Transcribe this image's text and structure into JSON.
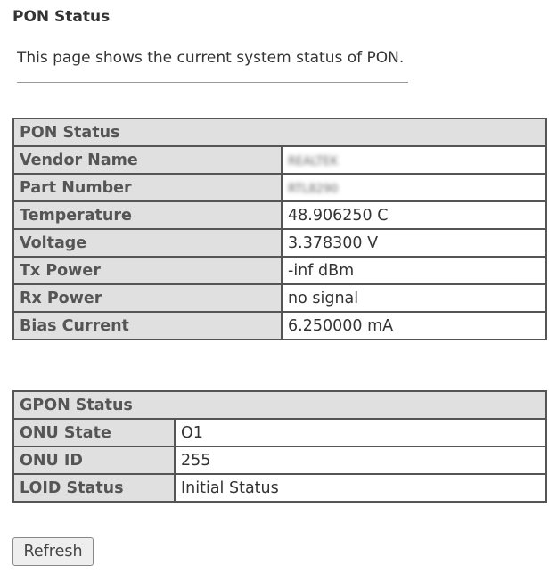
{
  "page": {
    "title": "PON Status",
    "description": "This page shows the current system status of PON."
  },
  "pon": {
    "header": "PON Status",
    "rows": [
      {
        "label": "Vendor Name",
        "value": "REALTEK"
      },
      {
        "label": "Part Number",
        "value": "RTL8290"
      },
      {
        "label": "Temperature",
        "value": "48.906250 C"
      },
      {
        "label": "Voltage",
        "value": "3.378300 V"
      },
      {
        "label": "Tx Power",
        "value": "-inf dBm"
      },
      {
        "label": "Rx Power",
        "value": "no signal"
      },
      {
        "label": "Bias Current",
        "value": "6.250000 mA"
      }
    ]
  },
  "gpon": {
    "header": "GPON Status",
    "rows": [
      {
        "label": "ONU State",
        "value": "O1"
      },
      {
        "label": "ONU ID",
        "value": "255"
      },
      {
        "label": "LOID Status",
        "value": "Initial Status"
      }
    ]
  },
  "refresh_label": "Refresh"
}
